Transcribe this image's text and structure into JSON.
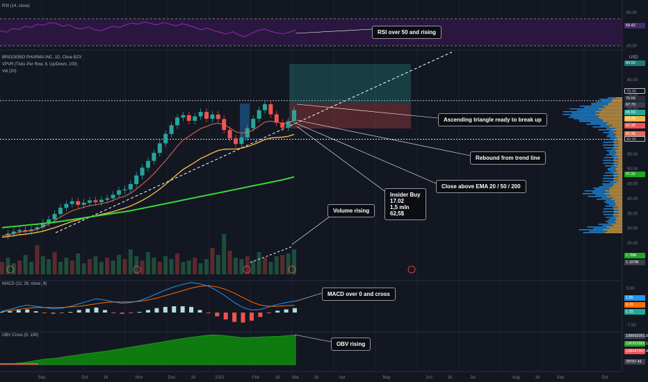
{
  "colors": {
    "background": "#131722",
    "up": "#26a69a",
    "down": "#ef5350",
    "ema20": "#e56d53",
    "ema50": "#f3b64d",
    "ema200": "#3bd93b",
    "rsi": "#9c27b0",
    "obv": "#1ea91e",
    "macd": "#2196f3",
    "signal": "#ff6d00"
  },
  "panels": {
    "rsi_title": "RSI (14, close)",
    "price_title": "BRIDGEBIO PHARMA INC, 1D, Cboe BZX",
    "vpvr_title": "VPVR (Ticks Per Row, 8, Up/Down, 100)",
    "vol_title": "Vol (20)",
    "macd_title": "MACD (12, 26, close, 9)",
    "obv_title": "OBV Cross (5, 100)",
    "currency": "USD"
  },
  "annotations": {
    "rsi": "RSI over 50 and rising",
    "triangle": "Ascending triangle ready to break up",
    "rebound": "Rebound from trend line",
    "ema": "Close above EMA 20 / 50 / 200",
    "insider": "Insider Buy\n17.02\n1,5 mln\n62,5$",
    "volume": "Volume rising",
    "macd": "MACD over 0 and cross",
    "obv": "OBV rising"
  },
  "value_tags": {
    "rsi_now": "59.42",
    "target": "84.50",
    "resistance": "73.00",
    "price_a": "70.69",
    "price_b": "67.70",
    "price_c": "65.59",
    "price_d": "63.28",
    "price_e": "62.38",
    "support": "60.00",
    "ema200": "47.32",
    "vol_a": "1.78M",
    "vol_b": "1.107M",
    "macd_a": "1.85",
    "macd_b": "0.70",
    "macd_c": "1.15",
    "obv_a": "198992091.00",
    "obv_b": "190202955.13",
    "obv_c": "138447267.42",
    "obv_d": "78797.41"
  },
  "chart_data": {
    "type": "candlestick",
    "ticker": "BRIDGEBIO PHARMA INC",
    "interval": "1D",
    "exchange": "Cboe BZX",
    "x_ticks": [
      "Sep",
      "Oct",
      "16",
      "Nov",
      "Dec",
      "16",
      "2021",
      "Feb",
      "16",
      "Mar",
      "16",
      "Apr",
      "May",
      "Jun",
      "16",
      "Jul",
      "Aug",
      "16",
      "Sep",
      "Oct"
    ],
    "y_ticks_price": [
      "80.00",
      "75.00",
      "70.00",
      "65.00",
      "60.00",
      "55.00",
      "50.00",
      "45.00",
      "40.00",
      "35.00",
      "30.00",
      "25.00"
    ],
    "y_ticks_rsi": [
      "80.00",
      "20.00"
    ],
    "y_ticks_macd": [
      "5.00",
      "-7.50"
    ],
    "price_close_path": [
      27.5,
      28.2,
      28.9,
      29.4,
      29.0,
      29.6,
      30.3,
      31.8,
      33.0,
      34.8,
      36.9,
      38.2,
      39.1,
      37.9,
      38.6,
      39.4,
      38.8,
      39.6,
      40.1,
      41.3,
      42.8,
      43.1,
      44.9,
      47.8,
      50.4,
      52.7,
      55.4,
      58.6,
      61.8,
      64.7,
      67.3,
      68.1,
      66.2,
      67.7,
      69.2,
      66.9,
      68.3,
      66.8,
      63.1,
      60.3,
      58.4,
      60.6,
      63.7,
      66.9,
      69.8,
      71.8,
      68.4,
      65.6,
      63.9,
      66.1,
      69.8
    ],
    "ema20_path": [
      27.4,
      27.8,
      28.2,
      28.7,
      28.9,
      29.2,
      29.7,
      30.5,
      31.4,
      32.5,
      33.8,
      34.9,
      35.9,
      36.5,
      37.1,
      37.6,
      37.9,
      38.3,
      38.7,
      39.4,
      40.2,
      40.8,
      41.8,
      43.2,
      44.8,
      46.5,
      48.4,
      50.6,
      52.8,
      55.2,
      57.7,
      59.7,
      61.0,
      62.3,
      63.6,
      64.3,
      65.1,
      65.4,
      64.9,
      63.8,
      62.5,
      62.1,
      62.3,
      63.1,
      64.4,
      65.8,
      66.1,
      65.8,
      65.3,
      65.5,
      66.3
    ],
    "ema50_path": [
      27.0,
      27.2,
      27.5,
      27.8,
      28.0,
      28.3,
      28.6,
      29.0,
      29.6,
      30.2,
      30.9,
      31.6,
      32.3,
      32.8,
      33.3,
      33.8,
      34.2,
      34.7,
      35.1,
      35.6,
      36.2,
      36.8,
      37.5,
      38.4,
      39.4,
      40.5,
      41.8,
      43.2,
      44.8,
      46.5,
      48.2,
      49.8,
      51.0,
      52.2,
      53.5,
      54.4,
      55.4,
      56.2,
      56.6,
      56.7,
      56.7,
      57.0,
      57.5,
      58.2,
      59.0,
      59.9,
      60.4,
      60.6,
      60.7,
      61.0,
      61.6
    ],
    "ema200_path": [
      30.2,
      30.4,
      30.6,
      30.8,
      31.0,
      31.2,
      31.4,
      31.6,
      31.8,
      32.0,
      32.3,
      32.6,
      32.9,
      33.2,
      33.5,
      33.8,
      34.1,
      34.4,
      34.7,
      35.0,
      35.3,
      35.6,
      35.9,
      36.3,
      36.7,
      37.1,
      37.5,
      37.9,
      38.3,
      38.7,
      39.1,
      39.5,
      39.9,
      40.3,
      40.7,
      41.1,
      41.5,
      41.9,
      42.3,
      42.7,
      43.1,
      43.5,
      43.9,
      44.3,
      44.7,
      45.1,
      45.5,
      45.9,
      46.3,
      46.8,
      47.3
    ],
    "volume_path": [
      0.9,
      1.2,
      0.8,
      1.0,
      1.4,
      0.9,
      2.1,
      1.3,
      1.1,
      1.6,
      0.9,
      1.2,
      1.0,
      1.5,
      0.8,
      1.1,
      1.3,
      0.9,
      1.2,
      1.0,
      1.4,
      1.1,
      1.8,
      1.3,
      1.0,
      1.6,
      1.2,
      0.9,
      1.3,
      1.1,
      1.5,
      0.9,
      1.0,
      1.2,
      0.8,
      1.1,
      1.9,
      1.4,
      2.9,
      1.7,
      1.2,
      1.1,
      1.3,
      1.0,
      1.6,
      1.2,
      0.9,
      1.3,
      1.4,
      1.5,
      1.8
    ],
    "rsi_path": [
      58,
      55,
      62,
      60,
      66,
      64,
      70,
      68,
      73,
      71,
      66,
      69,
      63,
      61,
      65,
      60,
      58,
      62,
      66,
      64,
      69,
      72,
      70,
      74,
      71,
      69,
      73,
      70,
      67,
      71,
      68,
      64,
      60,
      63,
      58,
      55,
      52,
      56,
      50,
      47,
      53,
      58,
      61,
      57,
      54,
      52,
      55,
      59
    ],
    "macd_path": [
      0.2,
      0.5,
      0.9,
      1.2,
      1.0,
      0.8,
      0.6,
      0.7,
      1.0,
      1.4,
      1.8,
      2.2,
      2.0,
      1.7,
      1.5,
      1.6,
      1.9,
      2.4,
      3.0,
      3.6,
      4.1,
      4.5,
      4.8,
      4.6,
      4.2,
      3.5,
      2.6,
      1.6,
      0.8,
      0.4,
      0.5,
      0.9,
      1.3,
      1.6,
      1.85
    ],
    "signal_path": [
      0.1,
      0.3,
      0.5,
      0.7,
      0.8,
      0.8,
      0.8,
      0.8,
      0.9,
      1.0,
      1.2,
      1.4,
      1.6,
      1.7,
      1.7,
      1.7,
      1.8,
      2.0,
      2.3,
      2.7,
      3.1,
      3.5,
      3.9,
      4.2,
      4.3,
      4.1,
      3.7,
      3.1,
      2.4,
      1.7,
      1.2,
      1.0,
      1.0,
      1.1,
      1.15
    ],
    "obv_path": [
      0.02,
      0.03,
      0.04,
      0.06,
      0.1,
      0.14,
      0.18,
      0.2,
      0.23,
      0.27,
      0.3,
      0.34,
      0.37,
      0.4,
      0.43,
      0.47,
      0.51,
      0.55,
      0.59,
      0.63,
      0.67,
      0.71,
      0.75,
      0.79,
      0.83,
      0.87,
      0.9,
      0.93,
      0.95,
      0.94,
      0.92,
      0.89,
      0.86,
      0.87,
      0.88,
      0.89,
      0.9,
      0.91,
      0.93,
      0.95
    ]
  }
}
